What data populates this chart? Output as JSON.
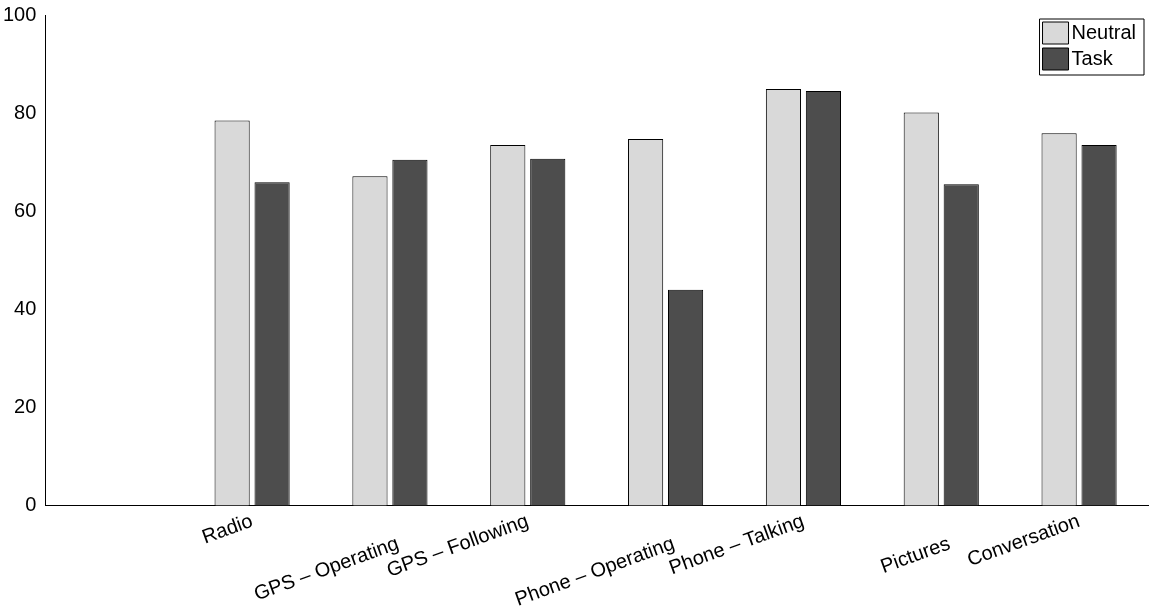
{
  "chart_data": {
    "type": "bar",
    "categories": [
      "Radio",
      "GPS – Operating",
      "GPS – Following",
      "Phone – Operating",
      "Phone – Talking",
      "Pictures",
      "Conversation"
    ],
    "series": [
      {
        "name": "Neutral",
        "color": "#d9d9d9",
        "values": [
          78.5,
          67.1,
          73.5,
          74.7,
          84.9,
          80.1,
          75.9
        ]
      },
      {
        "name": "Task",
        "color": "#4d4d4d",
        "values": [
          65.9,
          70.5,
          70.7,
          44.0,
          84.5,
          65.5,
          73.5
        ]
      }
    ],
    "ylim": [
      0,
      100
    ],
    "yticks": [
      0,
      20,
      40,
      60,
      80,
      100
    ],
    "grid": false,
    "legend": "top right"
  }
}
